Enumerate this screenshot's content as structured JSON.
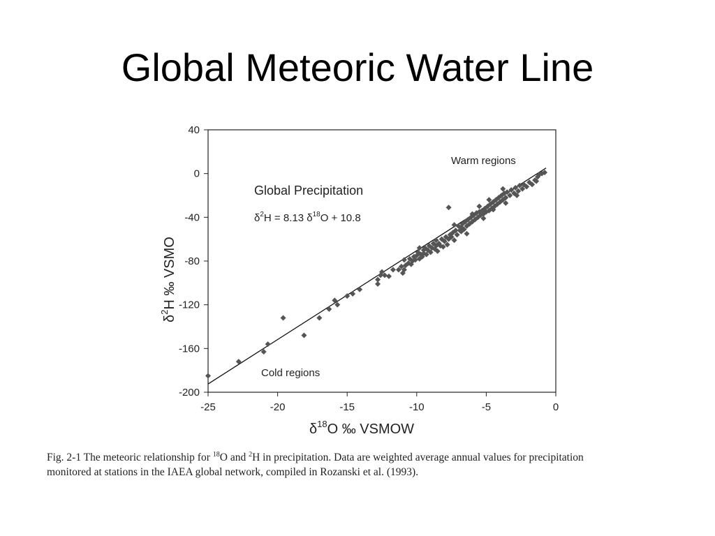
{
  "slide": {
    "title": "Global Meteoric Water Line"
  },
  "caption": {
    "prefix": "Fig. 2-1  The meteoric relationship for ",
    "iso1_mass": "18",
    "iso1_element": "O and ",
    "iso2_mass": "2",
    "iso2_element": "H in precipitation. Data are weighted average annual values for precipitation",
    "line2": "monitored at stations in the IAEA global network, compiled in Rozanski et al. (1993)."
  },
  "colors": {
    "points": "#555555",
    "line": "#111111",
    "axis": "#222222"
  },
  "chart_data": {
    "type": "scatter",
    "title": "",
    "xlabel": {
      "delta": "δ",
      "mass": "18",
      "rest": "O ‰ VSMOW"
    },
    "ylabel": {
      "delta": "δ",
      "mass": "2",
      "rest": "H ‰ VSMO"
    },
    "xlim": [
      -25,
      0
    ],
    "ylim": [
      -200,
      40
    ],
    "xticks": [
      -25,
      -20,
      -15,
      -10,
      -5,
      0
    ],
    "yticks": [
      -200,
      -160,
      -120,
      -80,
      -40,
      0,
      40
    ],
    "grid": false,
    "annotations": {
      "warm": "Warm regions",
      "cold": "Cold regions",
      "label": "Global Precipitation",
      "eq": {
        "d1": "δ",
        "m1": "2",
        "e1": "H = 8.13 ",
        "d2": "δ",
        "m2": "18",
        "e2": "O + 10.8"
      }
    },
    "fit_line": {
      "slope": 8.13,
      "intercept": 10.8,
      "x_range": [
        -25,
        -0.7
      ]
    },
    "series": [
      {
        "marker": "diamond",
        "points": [
          [
            -25.0,
            -185
          ],
          [
            -22.8,
            -172
          ],
          [
            -21.0,
            -163
          ],
          [
            -20.7,
            -156
          ],
          [
            -19.6,
            -132
          ],
          [
            -18.1,
            -148
          ],
          [
            -17.0,
            -132
          ],
          [
            -16.3,
            -124
          ],
          [
            -15.9,
            -116
          ],
          [
            -15.7,
            -120
          ],
          [
            -15.0,
            -112
          ],
          [
            -14.6,
            -110
          ],
          [
            -14.1,
            -106
          ],
          [
            -12.8,
            -101
          ],
          [
            -12.8,
            -97
          ],
          [
            -12.6,
            -93
          ],
          [
            -12.5,
            -90
          ],
          [
            -12.3,
            -93
          ],
          [
            -12.0,
            -94
          ],
          [
            -11.7,
            -88
          ],
          [
            -11.3,
            -88
          ],
          [
            -11.1,
            -85
          ],
          [
            -11.0,
            -91
          ],
          [
            -10.9,
            -88
          ],
          [
            -10.8,
            -84
          ],
          [
            -10.6,
            -82
          ],
          [
            -10.5,
            -78
          ],
          [
            -10.4,
            -83
          ],
          [
            -10.3,
            -80
          ],
          [
            -10.2,
            -76
          ],
          [
            -10.1,
            -79
          ],
          [
            -10.0,
            -75
          ],
          [
            -9.9,
            -72
          ],
          [
            -9.8,
            -78
          ],
          [
            -9.7,
            -74
          ],
          [
            -9.6,
            -76
          ],
          [
            -9.5,
            -73
          ],
          [
            -9.5,
            -70
          ],
          [
            -9.4,
            -68
          ],
          [
            -9.3,
            -74
          ],
          [
            -9.2,
            -70
          ],
          [
            -9.1,
            -66
          ],
          [
            -9.0,
            -72
          ],
          [
            -8.9,
            -68
          ],
          [
            -8.8,
            -64
          ],
          [
            -8.7,
            -69
          ],
          [
            -8.6,
            -66
          ],
          [
            -8.5,
            -71
          ],
          [
            -8.4,
            -64
          ],
          [
            -8.3,
            -66
          ],
          [
            -8.2,
            -60
          ],
          [
            -8.1,
            -67
          ],
          [
            -8.0,
            -62
          ],
          [
            -7.9,
            -58
          ],
          [
            -7.8,
            -65
          ],
          [
            -7.7,
            -60
          ],
          [
            -7.6,
            -56
          ],
          [
            -7.5,
            -58
          ],
          [
            -7.4,
            -54
          ],
          [
            -7.3,
            -61
          ],
          [
            -7.2,
            -52
          ],
          [
            -7.1,
            -56
          ],
          [
            -7.0,
            -48
          ],
          [
            -6.9,
            -52
          ],
          [
            -6.8,
            -49
          ],
          [
            -6.7,
            -46
          ],
          [
            -6.6,
            -51
          ],
          [
            -6.5,
            -44
          ],
          [
            -6.4,
            -48
          ],
          [
            -6.3,
            -42
          ],
          [
            -6.2,
            -46
          ],
          [
            -6.1,
            -40
          ],
          [
            -6.0,
            -44
          ],
          [
            -5.9,
            -38
          ],
          [
            -5.8,
            -42
          ],
          [
            -5.7,
            -36
          ],
          [
            -5.6,
            -40
          ],
          [
            -5.5,
            -35
          ],
          [
            -5.4,
            -38
          ],
          [
            -5.3,
            -34
          ],
          [
            -5.2,
            -37
          ],
          [
            -5.1,
            -32
          ],
          [
            -5.0,
            -35
          ],
          [
            -4.9,
            -30
          ],
          [
            -4.8,
            -34
          ],
          [
            -4.7,
            -28
          ],
          [
            -4.6,
            -32
          ],
          [
            -4.5,
            -26
          ],
          [
            -4.4,
            -30
          ],
          [
            -4.3,
            -24
          ],
          [
            -4.2,
            -28
          ],
          [
            -4.1,
            -22
          ],
          [
            -4.0,
            -26
          ],
          [
            -3.9,
            -20
          ],
          [
            -3.8,
            -24
          ],
          [
            -3.7,
            -18
          ],
          [
            -3.6,
            -22
          ],
          [
            -3.5,
            -17
          ],
          [
            -3.3,
            -20
          ],
          [
            -3.2,
            -15
          ],
          [
            -3.0,
            -18
          ],
          [
            -2.9,
            -13
          ],
          [
            -2.7,
            -16
          ],
          [
            -2.6,
            -11
          ],
          [
            -2.4,
            -14
          ],
          [
            -2.3,
            -10
          ],
          [
            -2.1,
            -12
          ],
          [
            -1.9,
            -8
          ],
          [
            -1.7,
            -10
          ],
          [
            -1.5,
            -6
          ],
          [
            -1.3,
            -3
          ],
          [
            -1.2,
            -1
          ],
          [
            -1.0,
            0
          ],
          [
            -0.8,
            1
          ],
          [
            -1.4,
            -7
          ],
          [
            -7.7,
            -31
          ],
          [
            -6.8,
            -53
          ],
          [
            -6.0,
            -37
          ],
          [
            -5.5,
            -30
          ],
          [
            -4.8,
            -24
          ],
          [
            -3.8,
            -14
          ],
          [
            -8.6,
            -61
          ],
          [
            -9.8,
            -68
          ],
          [
            -10.9,
            -79
          ],
          [
            -7.3,
            -47
          ],
          [
            -6.4,
            -55
          ],
          [
            -5.2,
            -41
          ],
          [
            -4.5,
            -33
          ],
          [
            -3.6,
            -27
          ],
          [
            -2.8,
            -20
          ]
        ]
      }
    ]
  }
}
